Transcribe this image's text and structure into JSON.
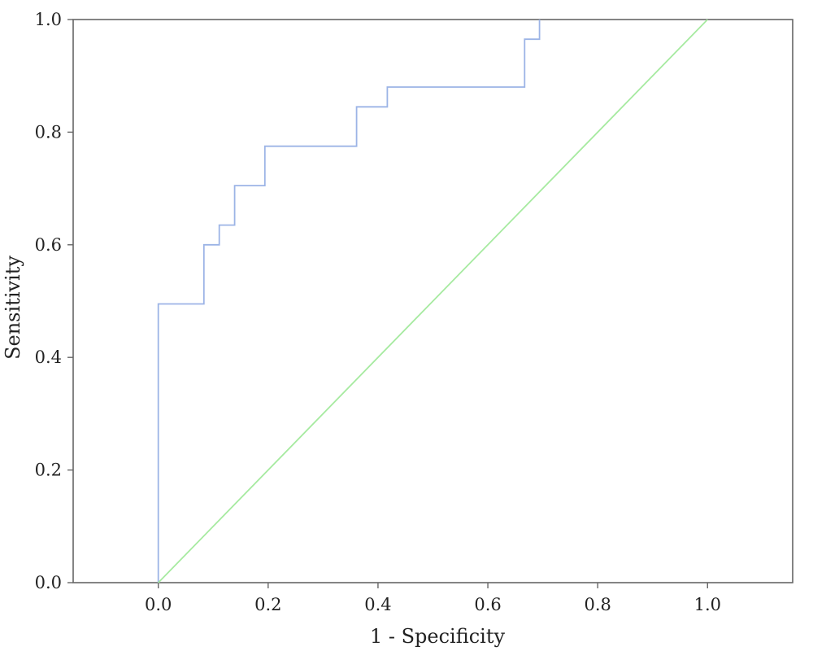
{
  "chart_data": {
    "type": "line",
    "title": "",
    "xlabel": "1 - Specificity",
    "ylabel": "Sensitivity",
    "xlim": [
      -0.155,
      1.155
    ],
    "ylim": [
      0,
      1
    ],
    "grid": false,
    "x_ticks": [
      "0.0",
      "0.2",
      "0.4",
      "0.6",
      "0.8",
      "1.0"
    ],
    "y_ticks": [
      "0.0",
      "0.2",
      "0.4",
      "0.6",
      "0.8",
      "1.0"
    ],
    "colors": {
      "roc": "#9cb4e6",
      "reference": "#a6eaa0",
      "frame": "#666666"
    },
    "series": [
      {
        "step": true,
        "x": [
          0.0,
          0.0,
          0.083,
          0.083,
          0.111,
          0.111,
          0.139,
          0.139,
          0.194,
          0.194,
          0.361,
          0.361,
          0.417,
          0.417,
          0.667,
          0.667,
          0.694,
          0.694
        ],
        "y": [
          0.0,
          0.495,
          0.495,
          0.6,
          0.6,
          0.635,
          0.635,
          0.705,
          0.705,
          0.775,
          0.775,
          0.845,
          0.845,
          0.88,
          0.88,
          0.965,
          0.965,
          1.0
        ]
      },
      {
        "x": [
          0,
          1
        ],
        "y": [
          0,
          1
        ]
      }
    ]
  }
}
